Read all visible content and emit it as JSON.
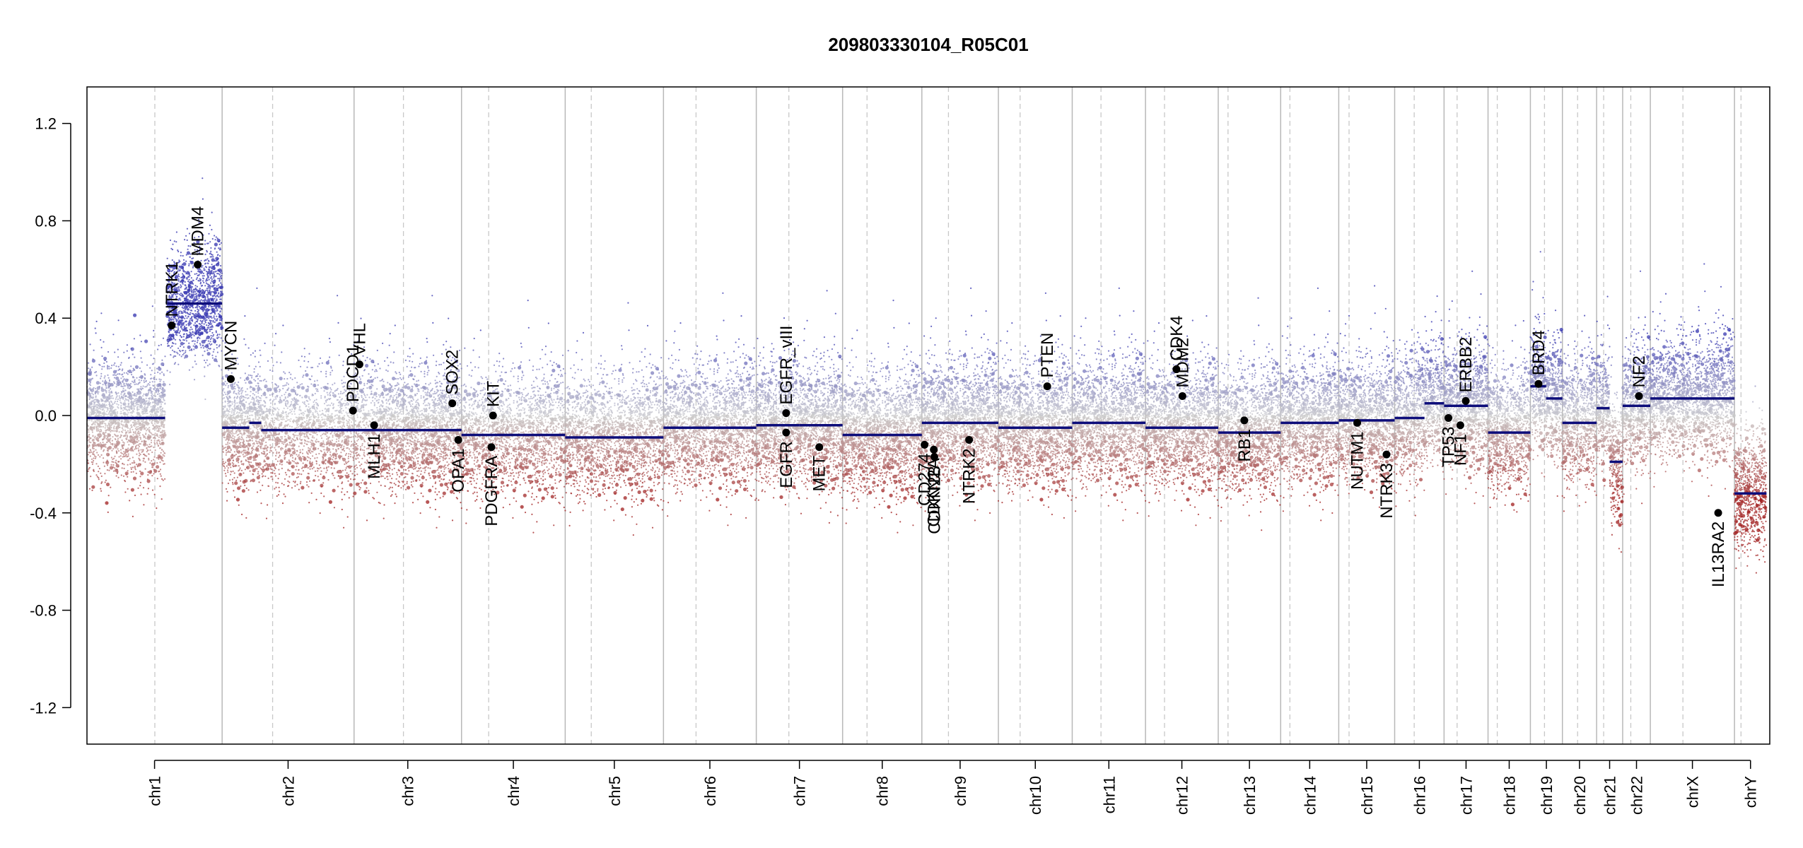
{
  "chart_data": {
    "type": "scatter",
    "title": "209803330104_R05C01",
    "xlabel": "",
    "ylabel": "",
    "ylim": [
      -1.35,
      1.35
    ],
    "yticks": [
      1.2,
      0.8,
      0.4,
      0.0,
      -0.4,
      -0.8,
      -1.2
    ],
    "ytick_labels": [
      "1.2",
      "0.8",
      "0.4",
      "0.0",
      "-0.4",
      "-0.8",
      "-1.2"
    ],
    "x_unit": "Mb (cumulative genome position)",
    "xlim": [
      0,
      3100
    ],
    "chromosomes": [
      {
        "name": "chr1",
        "start": 0,
        "len": 249,
        "cen": 125
      },
      {
        "name": "chr2",
        "start": 249,
        "len": 243,
        "cen": 93
      },
      {
        "name": "chr3",
        "start": 492,
        "len": 198,
        "cen": 91
      },
      {
        "name": "chr4",
        "start": 690,
        "len": 191,
        "cen": 50
      },
      {
        "name": "chr5",
        "start": 881,
        "len": 181,
        "cen": 48
      },
      {
        "name": "chr6",
        "start": 1062,
        "len": 171,
        "cen": 60
      },
      {
        "name": "chr7",
        "start": 1233,
        "len": 159,
        "cen": 60
      },
      {
        "name": "chr8",
        "start": 1392,
        "len": 146,
        "cen": 45
      },
      {
        "name": "chr9",
        "start": 1538,
        "len": 141,
        "cen": 49
      },
      {
        "name": "chr10",
        "start": 1679,
        "len": 136,
        "cen": 40
      },
      {
        "name": "chr11",
        "start": 1815,
        "len": 135,
        "cen": 53
      },
      {
        "name": "chr12",
        "start": 1950,
        "len": 134,
        "cen": 35
      },
      {
        "name": "chr13",
        "start": 2084,
        "len": 115,
        "cen": 18
      },
      {
        "name": "chr14",
        "start": 2199,
        "len": 107,
        "cen": 17
      },
      {
        "name": "chr15",
        "start": 2306,
        "len": 103,
        "cen": 19
      },
      {
        "name": "chr16",
        "start": 2409,
        "len": 91,
        "cen": 36
      },
      {
        "name": "chr17",
        "start": 2500,
        "len": 81,
        "cen": 24
      },
      {
        "name": "chr18",
        "start": 2581,
        "len": 78,
        "cen": 17
      },
      {
        "name": "chr19",
        "start": 2659,
        "len": 59,
        "cen": 26
      },
      {
        "name": "chr20",
        "start": 2718,
        "len": 63,
        "cen": 28
      },
      {
        "name": "chr21",
        "start": 2781,
        "len": 48,
        "cen": 13
      },
      {
        "name": "chr22",
        "start": 2829,
        "len": 51,
        "cen": 15
      },
      {
        "name": "chrX",
        "start": 2880,
        "len": 155,
        "cen": 60
      },
      {
        "name": "chrY",
        "start": 3035,
        "len": 59,
        "cen": 12
      }
    ],
    "segments": [
      {
        "x0": 0,
        "x1": 144,
        "y": -0.01
      },
      {
        "x0": 148,
        "x1": 249,
        "y": 0.46
      },
      {
        "x0": 249,
        "x1": 299,
        "y": -0.05
      },
      {
        "x0": 299,
        "x1": 321,
        "y": -0.03
      },
      {
        "x0": 321,
        "x1": 540,
        "y": -0.06
      },
      {
        "x0": 540,
        "x1": 690,
        "y": -0.06
      },
      {
        "x0": 690,
        "x1": 881,
        "y": -0.08
      },
      {
        "x0": 881,
        "x1": 1062,
        "y": -0.09
      },
      {
        "x0": 1062,
        "x1": 1233,
        "y": -0.05
      },
      {
        "x0": 1233,
        "x1": 1312,
        "y": -0.04
      },
      {
        "x0": 1312,
        "x1": 1392,
        "y": -0.04
      },
      {
        "x0": 1392,
        "x1": 1538,
        "y": -0.08
      },
      {
        "x0": 1538,
        "x1": 1679,
        "y": -0.03
      },
      {
        "x0": 1679,
        "x1": 1815,
        "y": -0.05
      },
      {
        "x0": 1815,
        "x1": 1950,
        "y": -0.03
      },
      {
        "x0": 1950,
        "x1": 2084,
        "y": -0.05
      },
      {
        "x0": 2084,
        "x1": 2199,
        "y": -0.07
      },
      {
        "x0": 2199,
        "x1": 2306,
        "y": -0.03
      },
      {
        "x0": 2306,
        "x1": 2409,
        "y": -0.02
      },
      {
        "x0": 2409,
        "x1": 2464,
        "y": -0.01
      },
      {
        "x0": 2464,
        "x1": 2500,
        "y": 0.05
      },
      {
        "x0": 2500,
        "x1": 2581,
        "y": 0.04
      },
      {
        "x0": 2581,
        "x1": 2659,
        "y": -0.07
      },
      {
        "x0": 2659,
        "x1": 2688,
        "y": 0.12
      },
      {
        "x0": 2688,
        "x1": 2718,
        "y": 0.07
      },
      {
        "x0": 2718,
        "x1": 2781,
        "y": -0.03
      },
      {
        "x0": 2781,
        "x1": 2805,
        "y": 0.03
      },
      {
        "x0": 2805,
        "x1": 2829,
        "y": -0.19
      },
      {
        "x0": 2829,
        "x1": 2880,
        "y": 0.04
      },
      {
        "x0": 2880,
        "x1": 3035,
        "y": 0.07
      },
      {
        "x0": 3035,
        "x1": 3094,
        "y": -0.32
      }
    ],
    "genes": [
      {
        "name": "NTRK1",
        "x": 156,
        "y": 0.37
      },
      {
        "name": "MDM4",
        "x": 204,
        "y": 0.62
      },
      {
        "name": "MYCN",
        "x": 265,
        "y": 0.15
      },
      {
        "name": "PDCD1",
        "x": 490,
        "y": 0.02
      },
      {
        "name": "VHL",
        "x": 502,
        "y": 0.21
      },
      {
        "name": "MLH1",
        "x": 529,
        "y": -0.04
      },
      {
        "name": "SOX2",
        "x": 673,
        "y": 0.05
      },
      {
        "name": "OPA1",
        "x": 684,
        "y": -0.1
      },
      {
        "name": "PDGFRA",
        "x": 745,
        "y": -0.13
      },
      {
        "name": "KIT",
        "x": 748,
        "y": 0.0
      },
      {
        "name": "EGFR_vIII",
        "x": 1288,
        "y": 0.01
      },
      {
        "name": "EGFR",
        "x": 1288,
        "y": -0.07
      },
      {
        "name": "MET",
        "x": 1349,
        "y": -0.13
      },
      {
        "name": "CDKN2A",
        "x": 1560,
        "y": -0.14
      },
      {
        "name": "CDKN2B",
        "x": 1561,
        "y": -0.17
      },
      {
        "name": "CD274",
        "x": 1543,
        "y": -0.12
      },
      {
        "name": "NTRK2",
        "x": 1625,
        "y": -0.1
      },
      {
        "name": "PTEN",
        "x": 1769,
        "y": 0.12
      },
      {
        "name": "CDK4",
        "x": 2007,
        "y": 0.19
      },
      {
        "name": "MDM2",
        "x": 2018,
        "y": 0.08
      },
      {
        "name": "RB1",
        "x": 2132,
        "y": -0.02
      },
      {
        "name": "NUTM1",
        "x": 2340,
        "y": -0.03
      },
      {
        "name": "NTRK3",
        "x": 2394,
        "y": -0.16
      },
      {
        "name": "TP53",
        "x": 2508,
        "y": -0.01
      },
      {
        "name": "NF1",
        "x": 2530,
        "y": -0.04
      },
      {
        "name": "ERBB2",
        "x": 2540,
        "y": 0.06
      },
      {
        "name": "BRD4",
        "x": 2674,
        "y": 0.13
      },
      {
        "name": "NF2",
        "x": 2859,
        "y": 0.08
      },
      {
        "name": "IL13RA2",
        "x": 3005,
        "y": -0.4
      }
    ]
  }
}
